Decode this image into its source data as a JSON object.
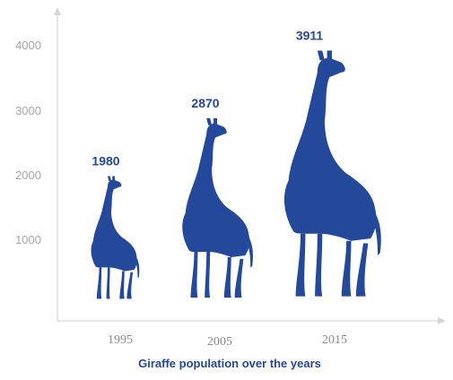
{
  "chart_data": {
    "type": "bar",
    "title": "Giraffe population over the years",
    "xlabel": "",
    "ylabel": "",
    "categories": [
      "1995",
      "2005",
      "2015"
    ],
    "values": [
      1980,
      2870,
      3911
    ],
    "value_labels": [
      "1980",
      "2870",
      "3911"
    ],
    "y_ticks": [
      "1000",
      "2000",
      "3000",
      "4000"
    ],
    "ylim": [
      0,
      4000
    ],
    "grid": false,
    "mark_shape": "giraffe-icon",
    "colors": {
      "mark": "#24489A",
      "value_label": "#24489A",
      "title": "#24489A",
      "axis": "#D6D6D6"
    }
  }
}
